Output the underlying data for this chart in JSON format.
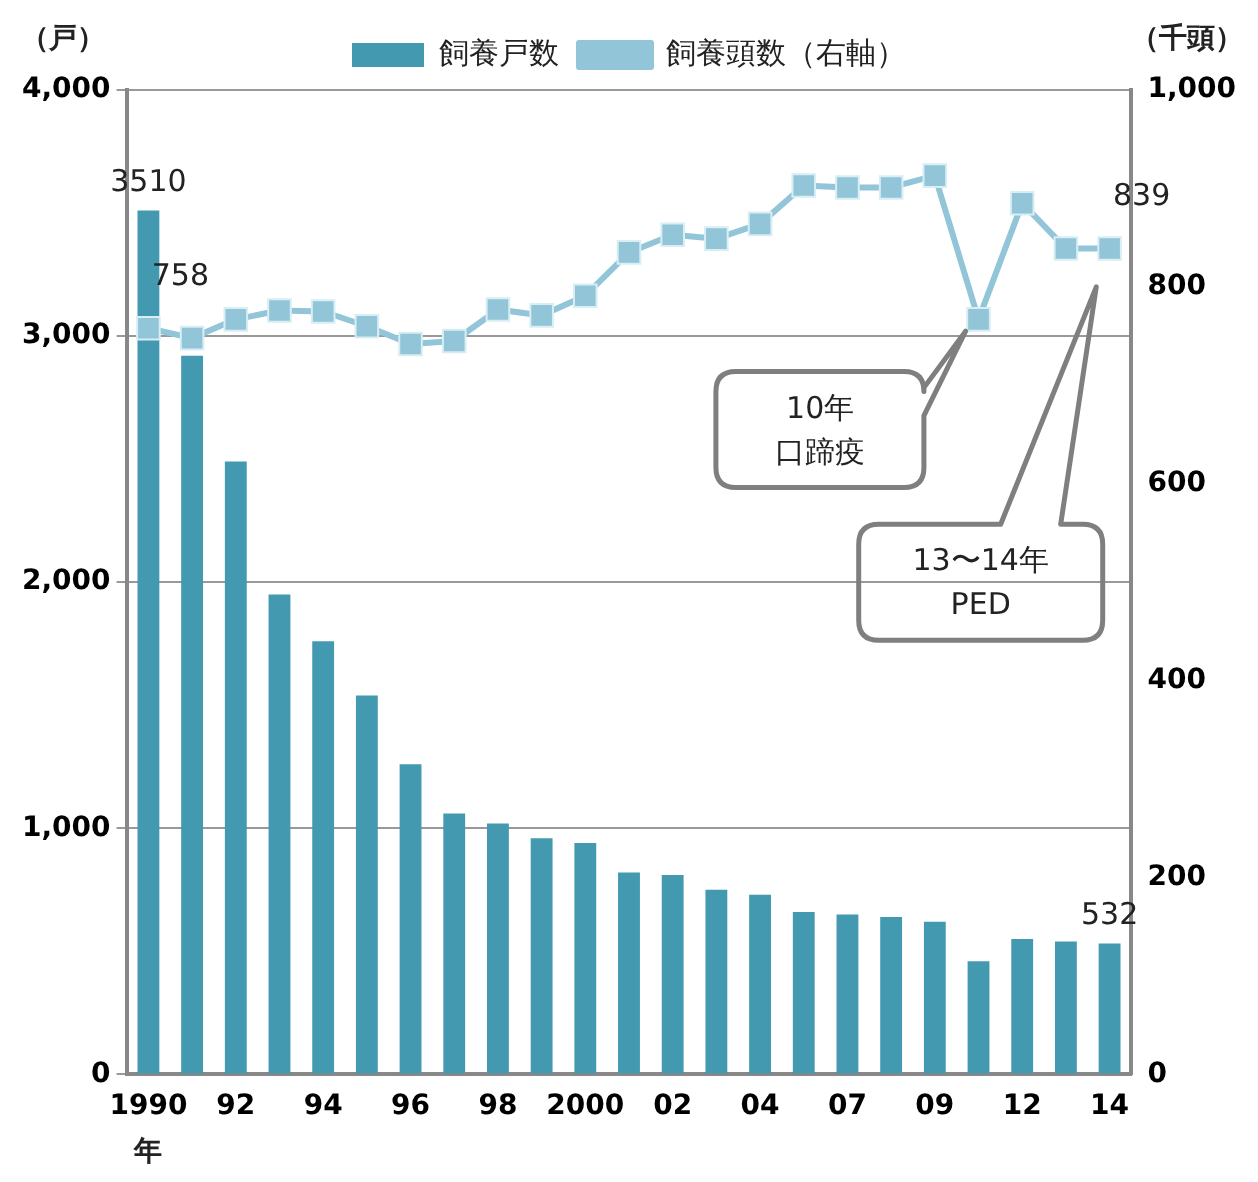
{
  "chart_data": {
    "type": "bar",
    "categories": [
      "1990",
      null,
      "92",
      null,
      "94",
      null,
      "96",
      null,
      "98",
      null,
      "2000",
      null,
      "02",
      null,
      "04",
      null,
      "07",
      null,
      "09",
      null,
      "12",
      null,
      "14"
    ],
    "series": [
      {
        "name": "飼養戸数",
        "color": "#4299b0",
        "values": [
          3510,
          2920,
          2490,
          1950,
          1760,
          1540,
          1260,
          1060,
          1020,
          960,
          940,
          820,
          810,
          750,
          730,
          660,
          650,
          640,
          620,
          460,
          550,
          540,
          532
        ],
        "value_labels": [
          "3510",
          null,
          null,
          null,
          null,
          null,
          null,
          null,
          null,
          null,
          null,
          null,
          null,
          null,
          null,
          null,
          null,
          null,
          null,
          null,
          null,
          null,
          "532"
        ]
      },
      {
        "name": "飼養頭数（右軸）",
        "type": "line",
        "axis": "y2",
        "color": "#92c5d8",
        "values": [
          758,
          748,
          767,
          776,
          775,
          760,
          742,
          745,
          777,
          771,
          791,
          835,
          853,
          849,
          864,
          903,
          901,
          901,
          913,
          767,
          885,
          839,
          839
        ],
        "value_labels": [
          "758",
          null,
          null,
          null,
          null,
          null,
          null,
          null,
          null,
          null,
          null,
          null,
          null,
          null,
          null,
          null,
          null,
          null,
          null,
          null,
          null,
          null,
          "839"
        ]
      }
    ],
    "ylabel": "（戸）",
    "y2label": "（千頭）",
    "xlabel": "年",
    "ylim": [
      0,
      4000
    ],
    "yticks": [
      0,
      {
        "value": 1000,
        "label": "1,000"
      },
      {
        "value": 2000,
        "label": "2,000"
      },
      {
        "value": 3000,
        "label": "3,000"
      },
      {
        "value": 4000,
        "label": "4,000"
      }
    ],
    "y2lim": [
      0,
      1000
    ],
    "y2ticks": [
      0,
      200,
      400,
      600,
      800,
      {
        "value": 1000,
        "label": "1,000"
      }
    ],
    "grid": "y",
    "legend": "top",
    "marker": "square",
    "line_style": "solid",
    "annotations": [
      "10年口蹄疫",
      "13〜14年 PED"
    ]
  }
}
